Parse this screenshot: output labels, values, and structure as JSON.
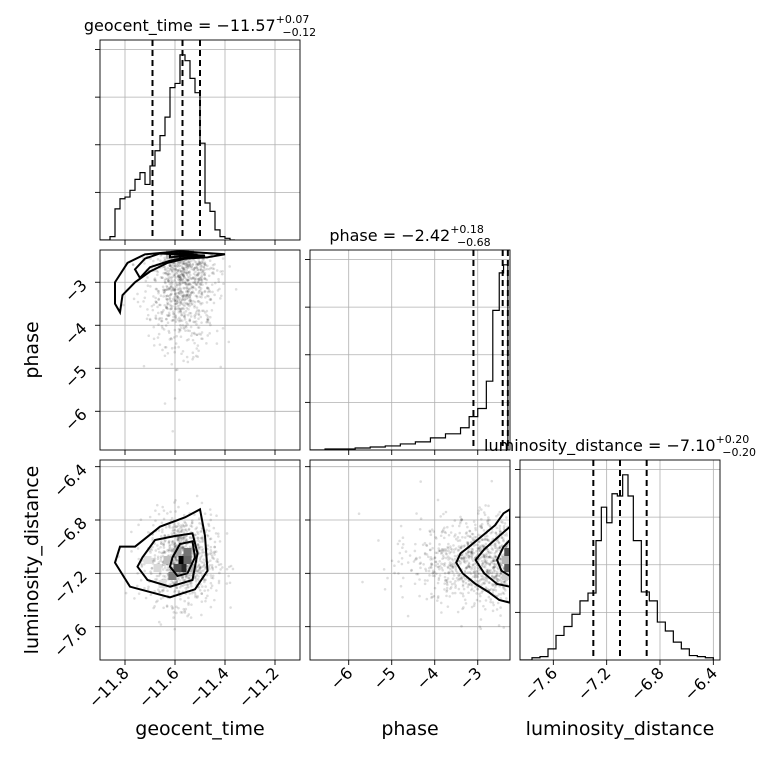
{
  "chart_data": {
    "type": "corner",
    "parameters": [
      {
        "key": "geocent_time",
        "label": "geocent_time",
        "title": "geocent_time = −11.57",
        "title_upper": "+0.07",
        "title_lower": "−0.12",
        "median": -11.57,
        "range": [
          -11.9,
          -11.1
        ],
        "ticks": [
          -11.8,
          -11.6,
          -11.4,
          -11.2
        ],
        "tick_labels": [
          "−11.8",
          "−11.6",
          "−11.4",
          "−11.2"
        ],
        "quantiles": [
          -11.69,
          -11.57,
          -11.5
        ],
        "hist": {
          "edges": [
            -11.9,
            -11.88,
            -11.86,
            -11.84,
            -11.82,
            -11.8,
            -11.78,
            -11.76,
            -11.74,
            -11.72,
            -11.7,
            -11.68,
            -11.66,
            -11.64,
            -11.62,
            -11.6,
            -11.58,
            -11.56,
            -11.54,
            -11.52,
            -11.5,
            -11.48,
            -11.46,
            -11.44,
            -11.42,
            -11.4,
            -11.38,
            -11.36
          ],
          "counts": [
            0,
            0,
            4,
            37,
            49,
            51,
            59,
            72,
            80,
            66,
            88,
            106,
            124,
            146,
            181,
            186,
            220,
            213,
            192,
            175,
            115,
            44,
            34,
            12,
            4,
            2,
            0
          ]
        }
      },
      {
        "key": "phase",
        "label": "phase",
        "title": "phase = −2.42",
        "title_upper": "+0.18",
        "title_lower": "−0.68",
        "median": -2.42,
        "range": [
          -6.9,
          -2.25
        ],
        "ticks": [
          -6,
          -5,
          -4,
          -3
        ],
        "tick_labels": [
          "−6",
          "−5",
          "−4",
          "−3"
        ],
        "quantiles": [
          -3.1,
          -2.42,
          -2.3
        ],
        "hist": {
          "edges": [
            -6.9,
            -6.55,
            -6.2,
            -5.85,
            -5.5,
            -5.15,
            -4.8,
            -4.45,
            -4.1,
            -3.75,
            -3.4,
            -3.2,
            -3.0,
            -2.8,
            -2.65,
            -2.5,
            -2.4,
            -2.3
          ],
          "counts": [
            0,
            1,
            1,
            2,
            3,
            4,
            6,
            8,
            12,
            16,
            22,
            33,
            41,
            68,
            138,
            175,
            183
          ]
        }
      },
      {
        "key": "luminosity_distance",
        "label": "luminosity_distance",
        "title": "luminosity_distance = −7.10",
        "title_upper": "+0.20",
        "title_lower": "−0.20",
        "median": -7.1,
        "range": [
          -7.85,
          -6.35
        ],
        "ticks": [
          -7.6,
          -7.2,
          -6.8,
          -6.4
        ],
        "tick_labels": [
          "−7.6",
          "−7.2",
          "−6.8",
          "−6.4"
        ],
        "quantiles": [
          -7.3,
          -7.1,
          -6.9
        ],
        "hist": {
          "edges": [
            -7.85,
            -7.76,
            -7.7,
            -7.64,
            -7.58,
            -7.52,
            -7.46,
            -7.4,
            -7.34,
            -7.28,
            -7.24,
            -7.2,
            -7.16,
            -7.12,
            -7.08,
            -7.04,
            -7.0,
            -6.94,
            -6.88,
            -6.82,
            -6.76,
            -6.7,
            -6.64,
            -6.58,
            -6.52,
            -6.46,
            -6.4
          ],
          "counts": [
            0,
            2,
            3,
            10,
            22,
            30,
            41,
            53,
            60,
            107,
            137,
            123,
            149,
            147,
            166,
            147,
            107,
            61,
            53,
            34,
            26,
            16,
            10,
            4,
            3,
            2
          ]
        }
      }
    ],
    "pairs": [
      {
        "x": "geocent_time",
        "y": "phase",
        "peak": [
          -11.57,
          -2.35
        ],
        "contours": [
          [
            [
              -11.82,
              -3.7
            ],
            [
              -11.81,
              -3.3
            ],
            [
              -11.76,
              -3.0
            ],
            [
              -11.7,
              -2.75
            ],
            [
              -11.63,
              -2.55
            ],
            [
              -11.56,
              -2.45
            ],
            [
              -11.47,
              -2.42
            ],
            [
              -11.4,
              -2.35
            ],
            [
              -11.58,
              -2.28
            ],
            [
              -11.72,
              -2.35
            ],
            [
              -11.79,
              -2.55
            ],
            [
              -11.84,
              -3.0
            ],
            [
              -11.84,
              -3.5
            ]
          ],
          [
            [
              -11.74,
              -2.9
            ],
            [
              -11.7,
              -2.65
            ],
            [
              -11.62,
              -2.5
            ],
            [
              -11.55,
              -2.42
            ],
            [
              -11.48,
              -2.38
            ],
            [
              -11.66,
              -2.33
            ],
            [
              -11.72,
              -2.45
            ],
            [
              -11.76,
              -2.7
            ]
          ],
          [
            [
              -11.62,
              -2.42
            ],
            [
              -11.55,
              -2.38
            ],
            [
              -11.51,
              -2.36
            ],
            [
              -11.56,
              -2.32
            ],
            [
              -11.62,
              -2.34
            ]
          ]
        ],
        "density_cells": [
          {
            "x": -11.58,
            "y": -2.36,
            "v": 0.95
          },
          {
            "x": -11.56,
            "y": -2.36,
            "v": 0.8
          },
          {
            "x": -11.6,
            "y": -2.36,
            "v": 0.6
          },
          {
            "x": -11.54,
            "y": -2.36,
            "v": 0.45
          },
          {
            "x": -11.62,
            "y": -2.36,
            "v": 0.3
          }
        ]
      },
      {
        "x": "geocent_time",
        "y": "luminosity_distance",
        "peak": [
          -11.57,
          -7.1
        ],
        "contours": [
          [
            [
              -11.76,
              -7.0
            ],
            [
              -11.66,
              -6.85
            ],
            [
              -11.56,
              -6.78
            ],
            [
              -11.5,
              -6.72
            ],
            [
              -11.48,
              -6.92
            ],
            [
              -11.47,
              -7.18
            ],
            [
              -11.52,
              -7.32
            ],
            [
              -11.62,
              -7.38
            ],
            [
              -11.78,
              -7.3
            ],
            [
              -11.84,
              -7.12
            ],
            [
              -11.82,
              -7.0
            ]
          ],
          [
            [
              -11.73,
              -7.08
            ],
            [
              -11.68,
              -6.95
            ],
            [
              -11.6,
              -6.92
            ],
            [
              -11.53,
              -6.9
            ],
            [
              -11.51,
              -7.05
            ],
            [
              -11.53,
              -7.25
            ],
            [
              -11.62,
              -7.3
            ],
            [
              -11.71,
              -7.25
            ],
            [
              -11.75,
              -7.15
            ]
          ],
          [
            [
              -11.61,
              -7.08
            ],
            [
              -11.58,
              -6.98
            ],
            [
              -11.53,
              -6.96
            ],
            [
              -11.52,
              -7.08
            ],
            [
              -11.55,
              -7.2
            ],
            [
              -11.59,
              -7.22
            ],
            [
              -11.62,
              -7.15
            ]
          ]
        ],
        "density_cells": [
          {
            "x": -11.57,
            "y": -7.1,
            "v": 1.0
          },
          {
            "x": -11.57,
            "y": -7.16,
            "v": 0.85
          },
          {
            "x": -11.59,
            "y": -7.16,
            "v": 0.7
          },
          {
            "x": -11.55,
            "y": -7.04,
            "v": 0.55
          },
          {
            "x": -11.61,
            "y": -7.22,
            "v": 0.5
          },
          {
            "x": -11.55,
            "y": -7.1,
            "v": 0.6
          },
          {
            "x": -11.59,
            "y": -7.04,
            "v": 0.35
          },
          {
            "x": -11.63,
            "y": -7.1,
            "v": 0.25
          },
          {
            "x": -11.53,
            "y": -7.16,
            "v": 0.3
          },
          {
            "x": -11.67,
            "y": -7.16,
            "v": 0.15
          },
          {
            "x": -11.71,
            "y": -7.1,
            "v": 0.12
          },
          {
            "x": -11.65,
            "y": -7.28,
            "v": 0.12
          }
        ]
      },
      {
        "x": "phase",
        "y": "luminosity_distance",
        "peak": [
          -2.3,
          -7.1
        ],
        "contours": [
          [
            [
              -2.25,
              -6.72
            ],
            [
              -2.4,
              -6.75
            ],
            [
              -2.6,
              -6.84
            ],
            [
              -2.9,
              -6.92
            ],
            [
              -3.2,
              -7.0
            ],
            [
              -3.4,
              -7.05
            ],
            [
              -3.5,
              -7.12
            ],
            [
              -3.35,
              -7.2
            ],
            [
              -3.05,
              -7.28
            ],
            [
              -2.75,
              -7.34
            ],
            [
              -2.5,
              -7.4
            ],
            [
              -2.25,
              -7.42
            ]
          ],
          [
            [
              -2.25,
              -6.85
            ],
            [
              -2.5,
              -6.92
            ],
            [
              -2.85,
              -7.02
            ],
            [
              -3.05,
              -7.1
            ],
            [
              -2.85,
              -7.2
            ],
            [
              -2.55,
              -7.28
            ],
            [
              -2.25,
              -7.3
            ]
          ],
          [
            [
              -2.25,
              -6.95
            ],
            [
              -2.4,
              -7.0
            ],
            [
              -2.55,
              -7.1
            ],
            [
              -2.45,
              -7.18
            ],
            [
              -2.25,
              -7.22
            ]
          ]
        ],
        "density_cells": [
          {
            "x": -2.29,
            "y": -7.1,
            "v": 1.0
          },
          {
            "x": -2.29,
            "y": -7.04,
            "v": 0.7
          },
          {
            "x": -2.29,
            "y": -7.16,
            "v": 0.65
          },
          {
            "x": -2.29,
            "y": -7.22,
            "v": 0.45
          },
          {
            "x": -2.35,
            "y": -7.1,
            "v": 0.3
          },
          {
            "x": -2.35,
            "y": -7.22,
            "v": 0.2
          }
        ]
      }
    ],
    "grid": true
  }
}
